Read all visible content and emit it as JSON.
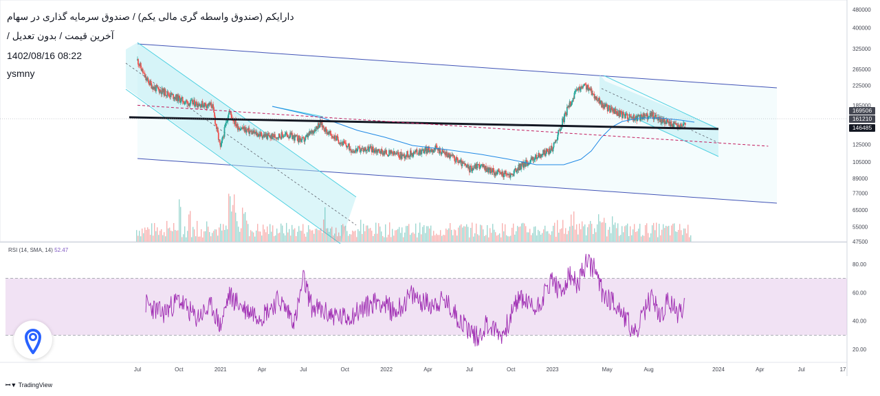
{
  "header": {
    "title": "دارایکم (صندوق واسطه گری مالی یکم) / صندوق سرمایه گذاری در سهام",
    "subtitle": "آخرین قیمت / بدون تعدیل /",
    "datetime": "1402/08/16 08:22",
    "author": "ysmny"
  },
  "footer": {
    "brand": "TradingView",
    "brand_icon": "tradingview-logo-icon"
  },
  "app_badge_icon": "location-pin-icon",
  "colors": {
    "up": "#26a69a",
    "down": "#ef5350",
    "channel": "#4dd0e1",
    "channel_fill": "#e0f7fa",
    "outer_channel": "#3f51b5",
    "support": "#131722",
    "ma": "#1e88e5",
    "resistance_dashed": "#c2185b",
    "rsi": "#9c27b0",
    "rsi_band": "#f3e5f5"
  },
  "price_labels": [
    {
      "text": "169506",
      "color": "#434651"
    },
    {
      "text": "161210",
      "color": "#434651"
    },
    {
      "text": "146485",
      "color": "#131722"
    }
  ],
  "rsi_legend": {
    "label": "RSI (14, SMA, 14)",
    "value": "52.47"
  },
  "chart_data": [
    {
      "type": "candlestick",
      "title": "",
      "price_axis": {
        "scale": "log",
        "ticks": [
          "480000",
          "400000",
          "325000",
          "265000",
          "225000",
          "185000",
          "150000",
          "125000",
          "105000",
          "89000",
          "77000",
          "65000",
          "55000",
          "47500"
        ]
      },
      "x_axis_labels": [
        "Jul",
        "Oct",
        "2021",
        "Apr",
        "Jul",
        "Oct",
        "2022",
        "Apr",
        "Jul",
        "Oct",
        "2023",
        "May",
        "Aug",
        "2024",
        "Apr",
        "Jul",
        "17"
      ],
      "series": [
        {
          "name": "price_close_approx",
          "t": [
            2020.5,
            2020.55,
            2020.6,
            2020.7,
            2020.8,
            2020.95,
            2021.0,
            2021.05,
            2021.1,
            2021.2,
            2021.3,
            2021.4,
            2021.5,
            2021.6,
            2021.65,
            2021.75,
            2021.8,
            2021.9,
            2022.0,
            2022.1,
            2022.2,
            2022.3,
            2022.4,
            2022.5,
            2022.55,
            2022.65,
            2022.75,
            2022.8,
            2022.9,
            2023.0,
            2023.05,
            2023.1,
            2023.15,
            2023.2,
            2023.25,
            2023.3,
            2023.4,
            2023.5,
            2023.6,
            2023.65,
            2023.75,
            2023.8
          ],
          "values": [
            290000,
            240000,
            220000,
            205000,
            190000,
            185000,
            120000,
            175000,
            150000,
            140000,
            135000,
            138000,
            130000,
            155000,
            140000,
            125000,
            118000,
            120000,
            115000,
            112000,
            117000,
            120000,
            110000,
            98000,
            102000,
            95000,
            92000,
            100000,
            110000,
            120000,
            150000,
            185000,
            215000,
            225000,
            205000,
            185000,
            170000,
            162000,
            168000,
            160000,
            150000,
            155000
          ]
        }
      ],
      "lines": [
        {
          "name": "support",
          "from": [
            2020.45,
            164000
          ],
          "to": [
            2024.0,
            146000
          ]
        },
        {
          "name": "dashed_resistance",
          "from": [
            2020.5,
            185000
          ],
          "to": [
            2024.3,
            123000
          ]
        }
      ]
    },
    {
      "type": "line",
      "title": "RSI (14, SMA, 14)",
      "y_axis_ticks": [
        "80.00",
        "60.00",
        "40.00",
        "20.00"
      ],
      "bands": [
        30,
        70
      ],
      "series": [
        {
          "name": "RSI",
          "t": [
            2020.55,
            2020.65,
            2020.75,
            2020.85,
            2020.95,
            2021.0,
            2021.05,
            2021.15,
            2021.25,
            2021.35,
            2021.45,
            2021.5,
            2021.55,
            2021.65,
            2021.75,
            2021.85,
            2021.95,
            2022.05,
            2022.15,
            2022.25,
            2022.35,
            2022.45,
            2022.5,
            2022.55,
            2022.6,
            2022.7,
            2022.8,
            2022.9,
            2023.0,
            2023.05,
            2023.1,
            2023.15,
            2023.2,
            2023.25,
            2023.3,
            2023.35,
            2023.4,
            2023.45,
            2023.5,
            2023.55,
            2023.6,
            2023.65,
            2023.7,
            2023.75,
            2023.8
          ],
          "values": [
            52,
            45,
            55,
            42,
            50,
            36,
            58,
            48,
            44,
            55,
            40,
            70,
            50,
            45,
            42,
            48,
            55,
            46,
            58,
            52,
            54,
            40,
            34,
            28,
            38,
            30,
            57,
            48,
            70,
            58,
            72,
            65,
            80,
            78,
            60,
            55,
            50,
            40,
            30,
            45,
            58,
            42,
            55,
            45,
            52
          ]
        }
      ]
    }
  ]
}
